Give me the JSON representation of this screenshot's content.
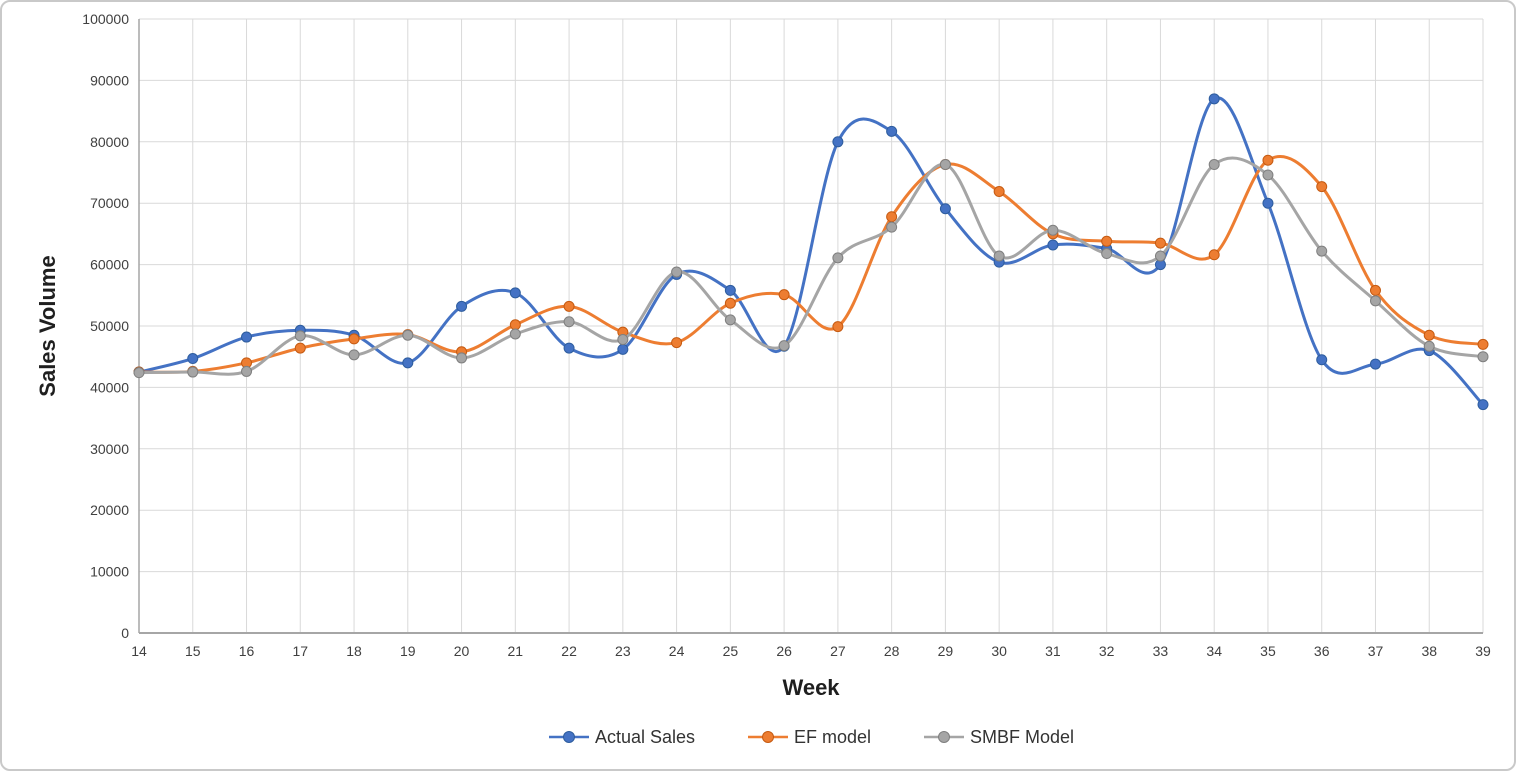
{
  "colors": {
    "background": "#FFFFFF",
    "frame_border": "#C9C9C9",
    "grid": "#D9D9D9",
    "axis": "#A6A6A6",
    "tick_text": "#404040"
  },
  "chart_data": {
    "type": "line",
    "title": "",
    "xlabel": "Week",
    "ylabel": "Sales Volume",
    "grid": true,
    "line_style": "smooth",
    "legend_position": "bottom",
    "x": [
      14,
      15,
      16,
      17,
      18,
      19,
      20,
      21,
      22,
      23,
      24,
      25,
      26,
      27,
      28,
      29,
      30,
      31,
      32,
      33,
      34,
      35,
      36,
      37,
      38,
      39
    ],
    "x_tick_labels": [
      "14",
      "15",
      "16",
      "17",
      "18",
      "19",
      "20",
      "21",
      "22",
      "23",
      "24",
      "25",
      "26",
      "27",
      "28",
      "29",
      "30",
      "31",
      "32",
      "33",
      "34",
      "35",
      "36",
      "37",
      "38",
      "39"
    ],
    "ylim": [
      0,
      100000
    ],
    "yticks": [
      0,
      10000,
      20000,
      30000,
      40000,
      50000,
      60000,
      70000,
      80000,
      90000,
      100000
    ],
    "y_tick_labels": [
      "0",
      "10000",
      "20000",
      "30000",
      "40000",
      "50000",
      "60000",
      "70000",
      "80000",
      "90000",
      "100000"
    ],
    "series": [
      {
        "name": "Actual Sales",
        "color": "#4472C4",
        "marker_border": "#2E5D9E",
        "values": [
          42500,
          44700,
          48200,
          49300,
          48500,
          44000,
          53200,
          55400,
          46400,
          46200,
          58400,
          55800,
          46700,
          80000,
          81700,
          69100,
          60400,
          63200,
          62600,
          60000,
          87000,
          70000,
          44500,
          43800,
          46000,
          37200
        ]
      },
      {
        "name": "EF model",
        "color": "#ED7D31",
        "marker_border": "#C55A11",
        "values": [
          42500,
          42600,
          44000,
          46400,
          47900,
          48600,
          45800,
          50200,
          53200,
          49000,
          47300,
          53700,
          55100,
          49900,
          67800,
          76300,
          71900,
          65000,
          63800,
          63500,
          61600,
          77000,
          72700,
          55800,
          48500,
          47000
        ]
      },
      {
        "name": "SMBF Model",
        "color": "#A5A5A5",
        "marker_border": "#7F7F7F",
        "values": [
          42400,
          42500,
          42600,
          48400,
          45300,
          48500,
          44800,
          48700,
          50700,
          47800,
          58800,
          51000,
          46800,
          61100,
          66100,
          76300,
          61400,
          65600,
          61800,
          61400,
          76300,
          74600,
          62200,
          54100,
          46700,
          45000
        ]
      }
    ]
  }
}
